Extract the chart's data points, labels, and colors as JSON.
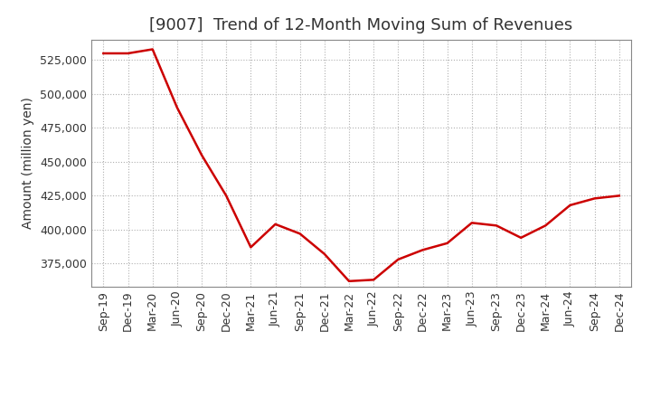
{
  "title": "[9007]  Trend of 12-Month Moving Sum of Revenues",
  "ylabel": "Amount (million yen)",
  "background_color": "#ffffff",
  "line_color": "#cc0000",
  "grid_color": "#b0b0b0",
  "x_labels": [
    "Sep-19",
    "Dec-19",
    "Mar-20",
    "Jun-20",
    "Sep-20",
    "Dec-20",
    "Mar-21",
    "Jun-21",
    "Sep-21",
    "Dec-21",
    "Mar-22",
    "Jun-22",
    "Sep-22",
    "Dec-22",
    "Mar-23",
    "Jun-23",
    "Sep-23",
    "Dec-23",
    "Mar-24",
    "Jun-24",
    "Sep-24",
    "Dec-24"
  ],
  "values": [
    530000,
    530000,
    533000,
    490000,
    455000,
    425000,
    387000,
    404000,
    397000,
    382000,
    362000,
    363000,
    378000,
    385000,
    390000,
    405000,
    403000,
    394000,
    403000,
    418000,
    423000,
    425000
  ],
  "ylim_min": 358000,
  "ylim_max": 540000,
  "ytick_values": [
    375000,
    400000,
    425000,
    450000,
    475000,
    500000,
    525000
  ],
  "title_fontsize": 13,
  "axis_label_fontsize": 10,
  "tick_fontsize": 9,
  "title_color": "#333333",
  "tick_color": "#333333",
  "spine_color": "#888888",
  "line_width": 1.8
}
